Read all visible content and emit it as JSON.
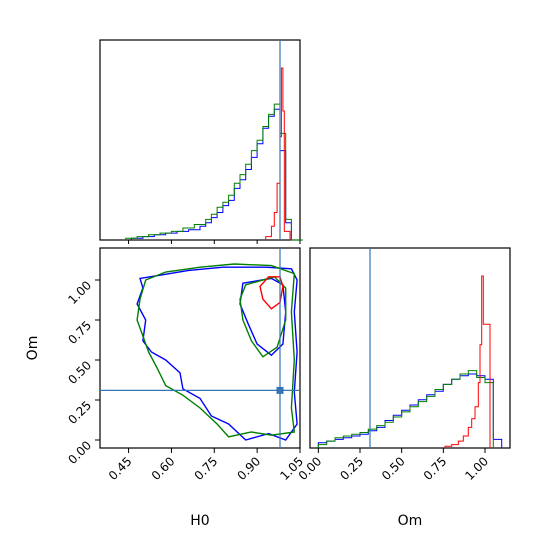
{
  "chart_data": {
    "type": "corner",
    "parameters": [
      "H0",
      "Om"
    ],
    "axis_labels": {
      "x_bottom_left": "H0",
      "x_bottom_right": "Om",
      "y_left": "Om"
    },
    "truth": {
      "H0": 0.98,
      "Om": 0.31,
      "color": "#3575b5"
    },
    "series_colors": [
      "#ff0000",
      "#0000ff",
      "#008000"
    ],
    "panels": [
      {
        "id": "hist-H0",
        "type": "step-histogram",
        "xlim": [
          0.35,
          1.05
        ],
        "xticks": [
          0.45,
          0.6,
          0.75,
          0.9,
          1.05
        ],
        "series": [
          {
            "color": "#0000ff",
            "x": [
              0.46,
              0.5,
              0.54,
              0.58,
              0.62,
              0.66,
              0.7,
              0.72,
              0.74,
              0.76,
              0.78,
              0.8,
              0.82,
              0.84,
              0.86,
              0.88,
              0.9,
              0.92,
              0.94,
              0.96,
              0.98,
              1.0,
              1.02
            ],
            "density": [
              0.01,
              0.02,
              0.03,
              0.04,
              0.05,
              0.06,
              0.08,
              0.1,
              0.13,
              0.16,
              0.2,
              0.23,
              0.3,
              0.35,
              0.41,
              0.48,
              0.56,
              0.65,
              0.72,
              0.76,
              0.52,
              0.1,
              0.0
            ]
          },
          {
            "color": "#008000",
            "x": [
              0.44,
              0.48,
              0.52,
              0.56,
              0.6,
              0.64,
              0.68,
              0.72,
              0.74,
              0.76,
              0.78,
              0.8,
              0.82,
              0.84,
              0.86,
              0.88,
              0.9,
              0.92,
              0.94,
              0.96,
              0.98,
              1.0,
              1.02
            ],
            "density": [
              0.01,
              0.02,
              0.03,
              0.04,
              0.05,
              0.07,
              0.09,
              0.12,
              0.15,
              0.19,
              0.22,
              0.26,
              0.33,
              0.38,
              0.44,
              0.52,
              0.58,
              0.66,
              0.73,
              0.79,
              0.62,
              0.12,
              0.0
            ]
          },
          {
            "color": "#ff0000",
            "x": [
              0.93,
              0.95,
              0.96,
              0.97,
              0.98,
              0.985,
              0.99,
              0.995
            ],
            "density": [
              0.02,
              0.08,
              0.16,
              0.33,
              0.6,
              1.0,
              0.75,
              0.05
            ]
          }
        ]
      },
      {
        "id": "hist-Om",
        "type": "step-histogram",
        "xlim": [
          -0.05,
          1.15
        ],
        "xticks": [
          0.0,
          0.25,
          0.5,
          0.75,
          1.0
        ],
        "series": [
          {
            "color": "#0000ff",
            "x": [
              0.0,
              0.05,
              0.1,
              0.15,
              0.2,
              0.25,
              0.3,
              0.35,
              0.4,
              0.45,
              0.5,
              0.55,
              0.6,
              0.65,
              0.7,
              0.75,
              0.8,
              0.85,
              0.9,
              0.95,
              1.0,
              1.05
            ],
            "density": [
              0.03,
              0.04,
              0.05,
              0.06,
              0.07,
              0.08,
              0.1,
              0.12,
              0.16,
              0.19,
              0.22,
              0.25,
              0.28,
              0.31,
              0.33,
              0.37,
              0.4,
              0.42,
              0.43,
              0.42,
              0.4,
              0.05
            ]
          },
          {
            "color": "#008000",
            "x": [
              0.0,
              0.05,
              0.1,
              0.15,
              0.2,
              0.25,
              0.3,
              0.35,
              0.4,
              0.45,
              0.5,
              0.55,
              0.6,
              0.65,
              0.7,
              0.75,
              0.8,
              0.85,
              0.9,
              0.95,
              1.0
            ],
            "density": [
              0.02,
              0.04,
              0.06,
              0.07,
              0.08,
              0.09,
              0.11,
              0.13,
              0.15,
              0.18,
              0.21,
              0.24,
              0.27,
              0.3,
              0.34,
              0.37,
              0.4,
              0.43,
              0.45,
              0.41,
              0.38
            ]
          },
          {
            "color": "#ff0000",
            "x": [
              0.76,
              0.8,
              0.84,
              0.87,
              0.9,
              0.92,
              0.94,
              0.96,
              0.97,
              0.98,
              0.99
            ],
            "density": [
              0.01,
              0.02,
              0.04,
              0.07,
              0.12,
              0.17,
              0.24,
              0.38,
              0.6,
              1.0,
              0.72
            ]
          }
        ]
      },
      {
        "id": "contour-H0-Om",
        "type": "contour",
        "xlim": [
          0.35,
          1.05
        ],
        "ylim": [
          -0.05,
          1.2
        ],
        "xticks": [
          0.45,
          0.6,
          0.75,
          0.9,
          1.05
        ],
        "yticks": [
          0.0,
          0.25,
          0.5,
          0.75,
          1.0
        ],
        "contours": [
          {
            "color": "#0000ff",
            "points": [
              [
                0.49,
                1.01
              ],
              [
                0.56,
                1.03
              ],
              [
                0.66,
                1.06
              ],
              [
                0.78,
                1.08
              ],
              [
                0.93,
                1.08
              ],
              [
                1.02,
                1.07
              ],
              [
                1.04,
                1.0
              ],
              [
                1.03,
                0.8
              ],
              [
                1.04,
                0.55
              ],
              [
                1.03,
                0.3
              ],
              [
                1.04,
                0.1
              ],
              [
                1.0,
                0.0
              ],
              [
                0.94,
                0.04
              ],
              [
                0.86,
                0.0
              ],
              [
                0.8,
                0.1
              ],
              [
                0.74,
                0.15
              ],
              [
                0.7,
                0.26
              ],
              [
                0.64,
                0.32
              ],
              [
                0.63,
                0.42
              ],
              [
                0.58,
                0.5
              ],
              [
                0.53,
                0.55
              ],
              [
                0.5,
                0.62
              ],
              [
                0.51,
                0.75
              ],
              [
                0.48,
                0.85
              ],
              [
                0.5,
                0.95
              ]
            ]
          },
          {
            "color": "#0000ff",
            "points": [
              [
                0.85,
                0.98
              ],
              [
                0.95,
                1.01
              ],
              [
                0.99,
                0.97
              ],
              [
                1.0,
                0.8
              ],
              [
                0.99,
                0.6
              ],
              [
                0.95,
                0.53
              ],
              [
                0.9,
                0.6
              ],
              [
                0.87,
                0.72
              ],
              [
                0.84,
                0.85
              ]
            ]
          },
          {
            "color": "#008000",
            "points": [
              [
                0.51,
                1.0
              ],
              [
                0.58,
                1.05
              ],
              [
                0.7,
                1.08
              ],
              [
                0.82,
                1.1
              ],
              [
                0.95,
                1.09
              ],
              [
                1.03,
                1.04
              ],
              [
                1.02,
                0.8
              ],
              [
                1.03,
                0.5
              ],
              [
                1.02,
                0.2
              ],
              [
                1.03,
                0.05
              ],
              [
                0.95,
                0.03
              ],
              [
                0.88,
                0.05
              ],
              [
                0.8,
                0.02
              ],
              [
                0.76,
                0.1
              ],
              [
                0.7,
                0.2
              ],
              [
                0.64,
                0.28
              ],
              [
                0.58,
                0.34
              ],
              [
                0.55,
                0.45
              ],
              [
                0.52,
                0.55
              ],
              [
                0.5,
                0.65
              ],
              [
                0.48,
                0.75
              ],
              [
                0.49,
                0.88
              ]
            ]
          },
          {
            "color": "#008000",
            "points": [
              [
                0.86,
                0.97
              ],
              [
                0.96,
                1.02
              ],
              [
                1.0,
                0.95
              ],
              [
                1.0,
                0.75
              ],
              [
                0.97,
                0.58
              ],
              [
                0.92,
                0.52
              ],
              [
                0.88,
                0.62
              ],
              [
                0.85,
                0.75
              ],
              [
                0.84,
                0.88
              ]
            ]
          },
          {
            "color": "#ff0000",
            "points": [
              [
                0.94,
                1.02
              ],
              [
                0.98,
                1.02
              ],
              [
                0.99,
                0.96
              ],
              [
                0.98,
                0.86
              ],
              [
                0.95,
                0.82
              ],
              [
                0.92,
                0.88
              ],
              [
                0.91,
                0.96
              ]
            ]
          }
        ]
      }
    ]
  }
}
